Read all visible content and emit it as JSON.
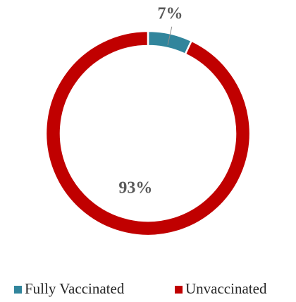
{
  "chart_data": {
    "type": "donut",
    "categories": [
      "Fully Vaccinated",
      "Unvaccinated"
    ],
    "values": [
      7,
      93
    ],
    "value_labels": [
      "7%",
      "93%"
    ],
    "colors": [
      "#31859c",
      "#c00000"
    ],
    "legend": "bottom"
  }
}
